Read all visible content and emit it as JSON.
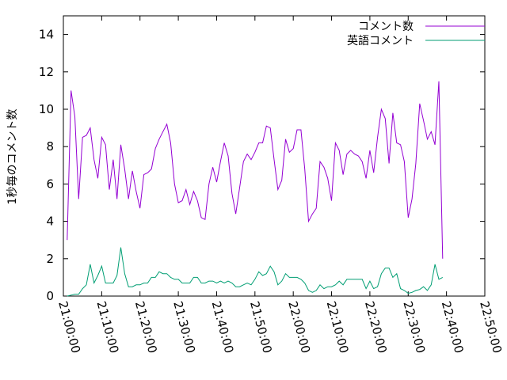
{
  "chart_data": {
    "type": "line",
    "ylabel": "1秒毎のコメント数",
    "xlabel": "",
    "ylim": [
      0,
      15
    ],
    "xlim_minutes": [
      0,
      110
    ],
    "yticks": [
      0,
      2,
      4,
      6,
      8,
      10,
      12,
      14
    ],
    "xticks": [
      {
        "minute": 0,
        "label": "21:00:00"
      },
      {
        "minute": 10,
        "label": "21:10:00"
      },
      {
        "minute": 20,
        "label": "21:20:00"
      },
      {
        "minute": 30,
        "label": "21:30:00"
      },
      {
        "minute": 40,
        "label": "21:40:00"
      },
      {
        "minute": 50,
        "label": "21:50:00"
      },
      {
        "minute": 60,
        "label": "22:00:00"
      },
      {
        "minute": 70,
        "label": "22:10:00"
      },
      {
        "minute": 80,
        "label": "22:20:00"
      },
      {
        "minute": 90,
        "label": "22:30:00"
      },
      {
        "minute": 100,
        "label": "22:40:00"
      },
      {
        "minute": 110,
        "label": "22:50:00"
      }
    ],
    "legend_position": "top-right",
    "grid": false,
    "series": [
      {
        "name": "コメント数",
        "color": "#9400d3",
        "points": [
          [
            1,
            3
          ],
          [
            2,
            11
          ],
          [
            3,
            9.6
          ],
          [
            4,
            5.2
          ],
          [
            5,
            8.5
          ],
          [
            6,
            8.6
          ],
          [
            7,
            9
          ],
          [
            8,
            7.3
          ],
          [
            9,
            6.3
          ],
          [
            10,
            8.5
          ],
          [
            11,
            8.1
          ],
          [
            12,
            5.7
          ],
          [
            13,
            7.3
          ],
          [
            14,
            5.2
          ],
          [
            15,
            8.1
          ],
          [
            16,
            6.8
          ],
          [
            17,
            5.2
          ],
          [
            18,
            6.7
          ],
          [
            19,
            5.6
          ],
          [
            20,
            4.7
          ],
          [
            21,
            6.5
          ],
          [
            22,
            6.6
          ],
          [
            23,
            6.8
          ],
          [
            24,
            7.9
          ],
          [
            25,
            8.4
          ],
          [
            26,
            8.8
          ],
          [
            27,
            9.2
          ],
          [
            28,
            8.2
          ],
          [
            29,
            6
          ],
          [
            30,
            5
          ],
          [
            31,
            5.1
          ],
          [
            32,
            5.7
          ],
          [
            33,
            4.9
          ],
          [
            34,
            5.6
          ],
          [
            35,
            5.1
          ],
          [
            36,
            4.2
          ],
          [
            37,
            4.1
          ],
          [
            38,
            6
          ],
          [
            39,
            6.9
          ],
          [
            40,
            6.1
          ],
          [
            41,
            7.2
          ],
          [
            42,
            8.2
          ],
          [
            43,
            7.5
          ],
          [
            44,
            5.5
          ],
          [
            45,
            4.4
          ],
          [
            46,
            5.8
          ],
          [
            47,
            7.2
          ],
          [
            48,
            7.6
          ],
          [
            49,
            7.3
          ],
          [
            50,
            7.7
          ],
          [
            51,
            8.2
          ],
          [
            52,
            8.2
          ],
          [
            53,
            9.1
          ],
          [
            54,
            9
          ],
          [
            55,
            7.3
          ],
          [
            56,
            5.7
          ],
          [
            57,
            6.2
          ],
          [
            58,
            8.4
          ],
          [
            59,
            7.7
          ],
          [
            60,
            7.9
          ],
          [
            61,
            8.9
          ],
          [
            62,
            8.9
          ],
          [
            63,
            6.8
          ],
          [
            64,
            4
          ],
          [
            65,
            4.4
          ],
          [
            66,
            4.7
          ],
          [
            67,
            7.2
          ],
          [
            68,
            6.9
          ],
          [
            69,
            6.3
          ],
          [
            70,
            5.1
          ],
          [
            71,
            8.2
          ],
          [
            72,
            7.8
          ],
          [
            73,
            6.5
          ],
          [
            74,
            7.6
          ],
          [
            75,
            7.8
          ],
          [
            76,
            7.6
          ],
          [
            77,
            7.5
          ],
          [
            78,
            7.2
          ],
          [
            79,
            6.3
          ],
          [
            80,
            7.8
          ],
          [
            81,
            6.6
          ],
          [
            82,
            8.5
          ],
          [
            83,
            10
          ],
          [
            84,
            9.5
          ],
          [
            85,
            7.1
          ],
          [
            86,
            9.8
          ],
          [
            87,
            8.2
          ],
          [
            88,
            8.1
          ],
          [
            89,
            7.2
          ],
          [
            90,
            4.2
          ],
          [
            91,
            5.2
          ],
          [
            92,
            7.1
          ],
          [
            93,
            10.3
          ],
          [
            94,
            9.4
          ],
          [
            95,
            8.4
          ],
          [
            96,
            8.8
          ],
          [
            97,
            8.1
          ],
          [
            98,
            11.5
          ],
          [
            99,
            2
          ]
        ]
      },
      {
        "name": "英語コメント",
        "color": "#009e73",
        "points": [
          [
            1,
            0
          ],
          [
            2,
            0.05
          ],
          [
            3,
            0.1
          ],
          [
            4,
            0.1
          ],
          [
            5,
            0.4
          ],
          [
            6,
            0.6
          ],
          [
            7,
            1.7
          ],
          [
            8,
            0.7
          ],
          [
            9,
            1.1
          ],
          [
            10,
            1.6
          ],
          [
            11,
            0.7
          ],
          [
            12,
            0.7
          ],
          [
            13,
            0.7
          ],
          [
            14,
            1.1
          ],
          [
            15,
            2.6
          ],
          [
            16,
            1.2
          ],
          [
            17,
            0.5
          ],
          [
            18,
            0.5
          ],
          [
            19,
            0.6
          ],
          [
            20,
            0.6
          ],
          [
            21,
            0.7
          ],
          [
            22,
            0.7
          ],
          [
            23,
            1
          ],
          [
            24,
            1
          ],
          [
            25,
            1.3
          ],
          [
            26,
            1.2
          ],
          [
            27,
            1.2
          ],
          [
            28,
            1
          ],
          [
            29,
            0.9
          ],
          [
            30,
            0.9
          ],
          [
            31,
            0.7
          ],
          [
            32,
            0.7
          ],
          [
            33,
            0.7
          ],
          [
            34,
            1
          ],
          [
            35,
            1
          ],
          [
            36,
            0.7
          ],
          [
            37,
            0.7
          ],
          [
            38,
            0.8
          ],
          [
            39,
            0.8
          ],
          [
            40,
            0.7
          ],
          [
            41,
            0.8
          ],
          [
            42,
            0.7
          ],
          [
            43,
            0.8
          ],
          [
            44,
            0.7
          ],
          [
            45,
            0.5
          ],
          [
            46,
            0.5
          ],
          [
            47,
            0.6
          ],
          [
            48,
            0.7
          ],
          [
            49,
            0.6
          ],
          [
            50,
            0.9
          ],
          [
            51,
            1.3
          ],
          [
            52,
            1.1
          ],
          [
            53,
            1.2
          ],
          [
            54,
            1.6
          ],
          [
            55,
            1.3
          ],
          [
            56,
            0.6
          ],
          [
            57,
            0.8
          ],
          [
            58,
            1.2
          ],
          [
            59,
            1
          ],
          [
            60,
            1
          ],
          [
            61,
            1
          ],
          [
            62,
            0.9
          ],
          [
            63,
            0.7
          ],
          [
            64,
            0.3
          ],
          [
            65,
            0.2
          ],
          [
            66,
            0.3
          ],
          [
            67,
            0.6
          ],
          [
            68,
            0.4
          ],
          [
            69,
            0.5
          ],
          [
            70,
            0.5
          ],
          [
            71,
            0.6
          ],
          [
            72,
            0.8
          ],
          [
            73,
            0.6
          ],
          [
            74,
            0.9
          ],
          [
            75,
            0.9
          ],
          [
            76,
            0.9
          ],
          [
            77,
            0.9
          ],
          [
            78,
            0.9
          ],
          [
            79,
            0.4
          ],
          [
            80,
            0.8
          ],
          [
            81,
            0.4
          ],
          [
            82,
            0.5
          ],
          [
            83,
            1.2
          ],
          [
            84,
            1.5
          ],
          [
            85,
            1.5
          ],
          [
            86,
            1
          ],
          [
            87,
            1.2
          ],
          [
            88,
            0.4
          ],
          [
            89,
            0.3
          ],
          [
            90,
            0.15
          ],
          [
            91,
            0.2
          ],
          [
            92,
            0.3
          ],
          [
            93,
            0.35
          ],
          [
            94,
            0.5
          ],
          [
            95,
            0.3
          ],
          [
            96,
            0.6
          ],
          [
            97,
            1.7
          ],
          [
            98,
            0.9
          ],
          [
            99,
            1
          ]
        ]
      }
    ]
  }
}
